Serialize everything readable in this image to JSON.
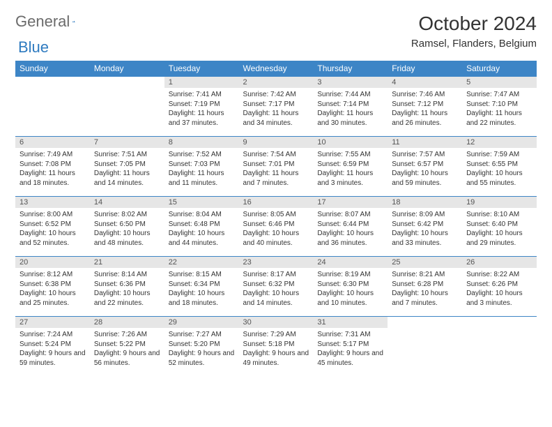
{
  "logo": {
    "part1": "General",
    "part2": "Blue"
  },
  "title": "October 2024",
  "location": "Ramsel, Flanders, Belgium",
  "colors": {
    "header_bg": "#3d85c6",
    "header_text": "#ffffff",
    "daynum_bg": "#e6e6e6",
    "row_border": "#3d85c6",
    "logo_grey": "#6b6b6b",
    "logo_blue": "#2f7bc0"
  },
  "weekday_labels": [
    "Sunday",
    "Monday",
    "Tuesday",
    "Wednesday",
    "Thursday",
    "Friday",
    "Saturday"
  ],
  "layout": {
    "first_weekday_index": 2,
    "weeks": 5,
    "cols": 7
  },
  "typography": {
    "title_fontsize": 28,
    "location_fontsize": 15,
    "weekday_fontsize": 12,
    "daynum_fontsize": 11,
    "body_fontsize": 10
  },
  "days": [
    {
      "n": 1,
      "sunrise": "7:41 AM",
      "sunset": "7:19 PM",
      "daylight": "11 hours and 37 minutes."
    },
    {
      "n": 2,
      "sunrise": "7:42 AM",
      "sunset": "7:17 PM",
      "daylight": "11 hours and 34 minutes."
    },
    {
      "n": 3,
      "sunrise": "7:44 AM",
      "sunset": "7:14 PM",
      "daylight": "11 hours and 30 minutes."
    },
    {
      "n": 4,
      "sunrise": "7:46 AM",
      "sunset": "7:12 PM",
      "daylight": "11 hours and 26 minutes."
    },
    {
      "n": 5,
      "sunrise": "7:47 AM",
      "sunset": "7:10 PM",
      "daylight": "11 hours and 22 minutes."
    },
    {
      "n": 6,
      "sunrise": "7:49 AM",
      "sunset": "7:08 PM",
      "daylight": "11 hours and 18 minutes."
    },
    {
      "n": 7,
      "sunrise": "7:51 AM",
      "sunset": "7:05 PM",
      "daylight": "11 hours and 14 minutes."
    },
    {
      "n": 8,
      "sunrise": "7:52 AM",
      "sunset": "7:03 PM",
      "daylight": "11 hours and 11 minutes."
    },
    {
      "n": 9,
      "sunrise": "7:54 AM",
      "sunset": "7:01 PM",
      "daylight": "11 hours and 7 minutes."
    },
    {
      "n": 10,
      "sunrise": "7:55 AM",
      "sunset": "6:59 PM",
      "daylight": "11 hours and 3 minutes."
    },
    {
      "n": 11,
      "sunrise": "7:57 AM",
      "sunset": "6:57 PM",
      "daylight": "10 hours and 59 minutes."
    },
    {
      "n": 12,
      "sunrise": "7:59 AM",
      "sunset": "6:55 PM",
      "daylight": "10 hours and 55 minutes."
    },
    {
      "n": 13,
      "sunrise": "8:00 AM",
      "sunset": "6:52 PM",
      "daylight": "10 hours and 52 minutes."
    },
    {
      "n": 14,
      "sunrise": "8:02 AM",
      "sunset": "6:50 PM",
      "daylight": "10 hours and 48 minutes."
    },
    {
      "n": 15,
      "sunrise": "8:04 AM",
      "sunset": "6:48 PM",
      "daylight": "10 hours and 44 minutes."
    },
    {
      "n": 16,
      "sunrise": "8:05 AM",
      "sunset": "6:46 PM",
      "daylight": "10 hours and 40 minutes."
    },
    {
      "n": 17,
      "sunrise": "8:07 AM",
      "sunset": "6:44 PM",
      "daylight": "10 hours and 36 minutes."
    },
    {
      "n": 18,
      "sunrise": "8:09 AM",
      "sunset": "6:42 PM",
      "daylight": "10 hours and 33 minutes."
    },
    {
      "n": 19,
      "sunrise": "8:10 AM",
      "sunset": "6:40 PM",
      "daylight": "10 hours and 29 minutes."
    },
    {
      "n": 20,
      "sunrise": "8:12 AM",
      "sunset": "6:38 PM",
      "daylight": "10 hours and 25 minutes."
    },
    {
      "n": 21,
      "sunrise": "8:14 AM",
      "sunset": "6:36 PM",
      "daylight": "10 hours and 22 minutes."
    },
    {
      "n": 22,
      "sunrise": "8:15 AM",
      "sunset": "6:34 PM",
      "daylight": "10 hours and 18 minutes."
    },
    {
      "n": 23,
      "sunrise": "8:17 AM",
      "sunset": "6:32 PM",
      "daylight": "10 hours and 14 minutes."
    },
    {
      "n": 24,
      "sunrise": "8:19 AM",
      "sunset": "6:30 PM",
      "daylight": "10 hours and 10 minutes."
    },
    {
      "n": 25,
      "sunrise": "8:21 AM",
      "sunset": "6:28 PM",
      "daylight": "10 hours and 7 minutes."
    },
    {
      "n": 26,
      "sunrise": "8:22 AM",
      "sunset": "6:26 PM",
      "daylight": "10 hours and 3 minutes."
    },
    {
      "n": 27,
      "sunrise": "7:24 AM",
      "sunset": "5:24 PM",
      "daylight": "9 hours and 59 minutes."
    },
    {
      "n": 28,
      "sunrise": "7:26 AM",
      "sunset": "5:22 PM",
      "daylight": "9 hours and 56 minutes."
    },
    {
      "n": 29,
      "sunrise": "7:27 AM",
      "sunset": "5:20 PM",
      "daylight": "9 hours and 52 minutes."
    },
    {
      "n": 30,
      "sunrise": "7:29 AM",
      "sunset": "5:18 PM",
      "daylight": "9 hours and 49 minutes."
    },
    {
      "n": 31,
      "sunrise": "7:31 AM",
      "sunset": "5:17 PM",
      "daylight": "9 hours and 45 minutes."
    }
  ]
}
